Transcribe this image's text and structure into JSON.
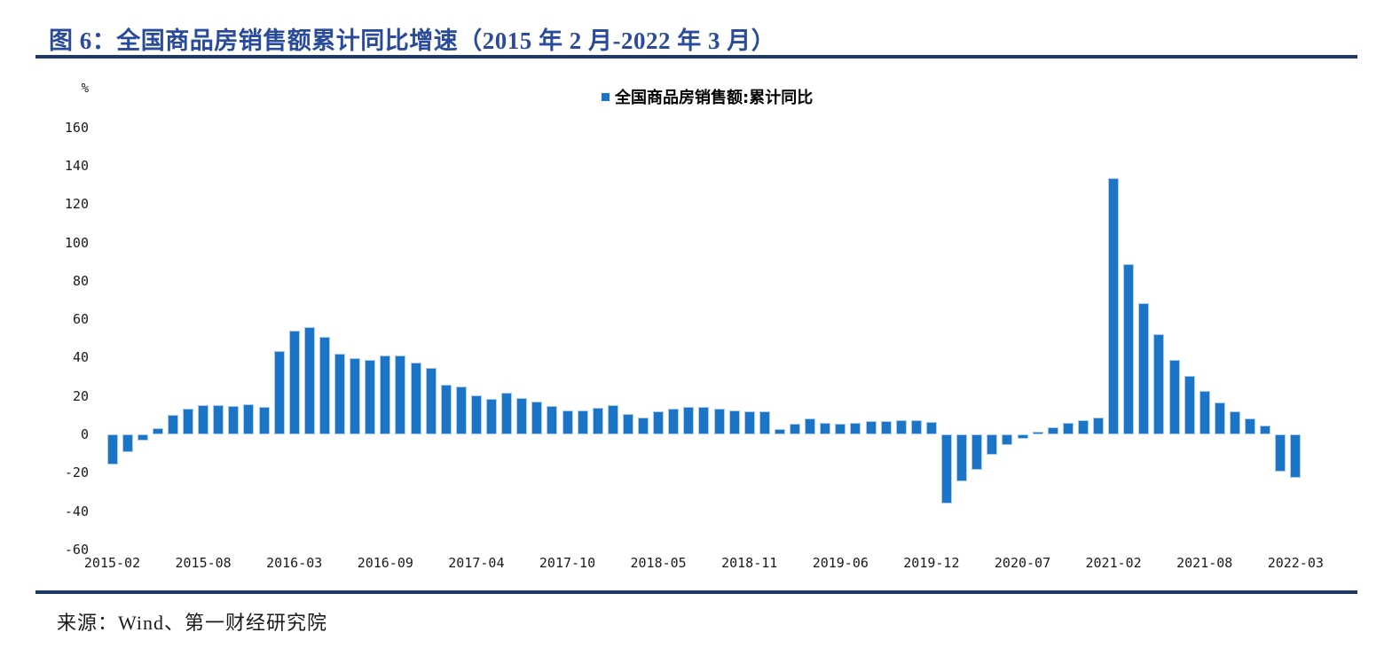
{
  "figure": {
    "title": "图 6：全国商品房销售额累计同比增速（2015 年 2 月-2022 年 3 月）",
    "source": "来源：Wind、第一财经研究院"
  },
  "colors": {
    "title_text": "#2a4b9b",
    "rule": "#1f3864",
    "bar_fill": "#1b74c5",
    "bar_edge": "#a8cdf0",
    "tick_text": "#1a1a1a"
  },
  "chart_data": {
    "type": "bar",
    "title": "全国商品房销售额累计同比增速（2015 年 2 月-2022 年 3 月）",
    "ylabel": "%",
    "legend": [
      "全国商品房销售额:累计同比"
    ],
    "legend_position": "top-center",
    "grid": false,
    "ylim": [
      -60,
      170
    ],
    "yticks": [
      160,
      140,
      120,
      100,
      80,
      60,
      40,
      20,
      0,
      -20,
      -40,
      -60
    ],
    "categories": [
      "2015-02",
      "2015-03",
      "2015-04",
      "2015-05",
      "2015-06",
      "2015-07",
      "2015-08",
      "2015-09",
      "2015-10",
      "2015-11",
      "2015-12",
      "2016-02",
      "2016-03",
      "2016-04",
      "2016-05",
      "2016-06",
      "2016-07",
      "2016-08",
      "2016-09",
      "2016-10",
      "2016-11",
      "2016-12",
      "2017-02",
      "2017-03",
      "2017-04",
      "2017-05",
      "2017-06",
      "2017-07",
      "2017-08",
      "2017-09",
      "2017-10",
      "2017-11",
      "2017-12",
      "2018-02",
      "2018-03",
      "2018-04",
      "2018-05",
      "2018-06",
      "2018-07",
      "2018-08",
      "2018-09",
      "2018-10",
      "2018-11",
      "2018-12",
      "2019-02",
      "2019-03",
      "2019-04",
      "2019-05",
      "2019-06",
      "2019-07",
      "2019-08",
      "2019-09",
      "2019-10",
      "2019-11",
      "2019-12",
      "2020-02",
      "2020-03",
      "2020-04",
      "2020-05",
      "2020-06",
      "2020-07",
      "2020-08",
      "2020-09",
      "2020-10",
      "2020-11",
      "2020-12",
      "2021-02",
      "2021-03",
      "2021-04",
      "2021-05",
      "2021-06",
      "2021-07",
      "2021-08",
      "2021-09",
      "2021-10",
      "2021-11",
      "2021-12",
      "2022-02",
      "2022-03"
    ],
    "values": [
      -15.8,
      -9.3,
      -3.1,
      3.1,
      10.0,
      13.4,
      15.3,
      15.3,
      14.9,
      15.6,
      14.4,
      43.6,
      54.1,
      55.9,
      50.7,
      42.1,
      39.8,
      38.7,
      41.3,
      41.2,
      37.5,
      34.8,
      26.0,
      25.1,
      20.1,
      18.6,
      21.5,
      18.9,
      17.2,
      14.6,
      12.6,
      12.7,
      13.7,
      15.3,
      10.4,
      9.0,
      11.8,
      13.2,
      14.4,
      14.5,
      13.3,
      12.5,
      12.1,
      12.2,
      2.8,
      5.6,
      8.1,
      6.1,
      5.6,
      6.2,
      6.7,
      7.1,
      7.3,
      7.3,
      6.5,
      -35.9,
      -24.7,
      -18.6,
      -10.6,
      -5.4,
      -2.1,
      1.6,
      3.7,
      5.8,
      7.2,
      8.7,
      133.4,
      88.5,
      68.2,
      52.4,
      38.9,
      30.7,
      22.8,
      16.6,
      11.8,
      8.5,
      4.8,
      -19.3,
      -22.7
    ],
    "xtick_indices": [
      0,
      6,
      12,
      18,
      24,
      30,
      36,
      42,
      48,
      54,
      60,
      66,
      72,
      78
    ],
    "xtick_labels": [
      "2015-02",
      "2015-08",
      "2016-03",
      "2016-09",
      "2017-04",
      "2017-10",
      "2018-05",
      "2018-11",
      "2019-06",
      "2019-12",
      "2020-07",
      "2021-02",
      "2021-08",
      "2022-03"
    ]
  }
}
